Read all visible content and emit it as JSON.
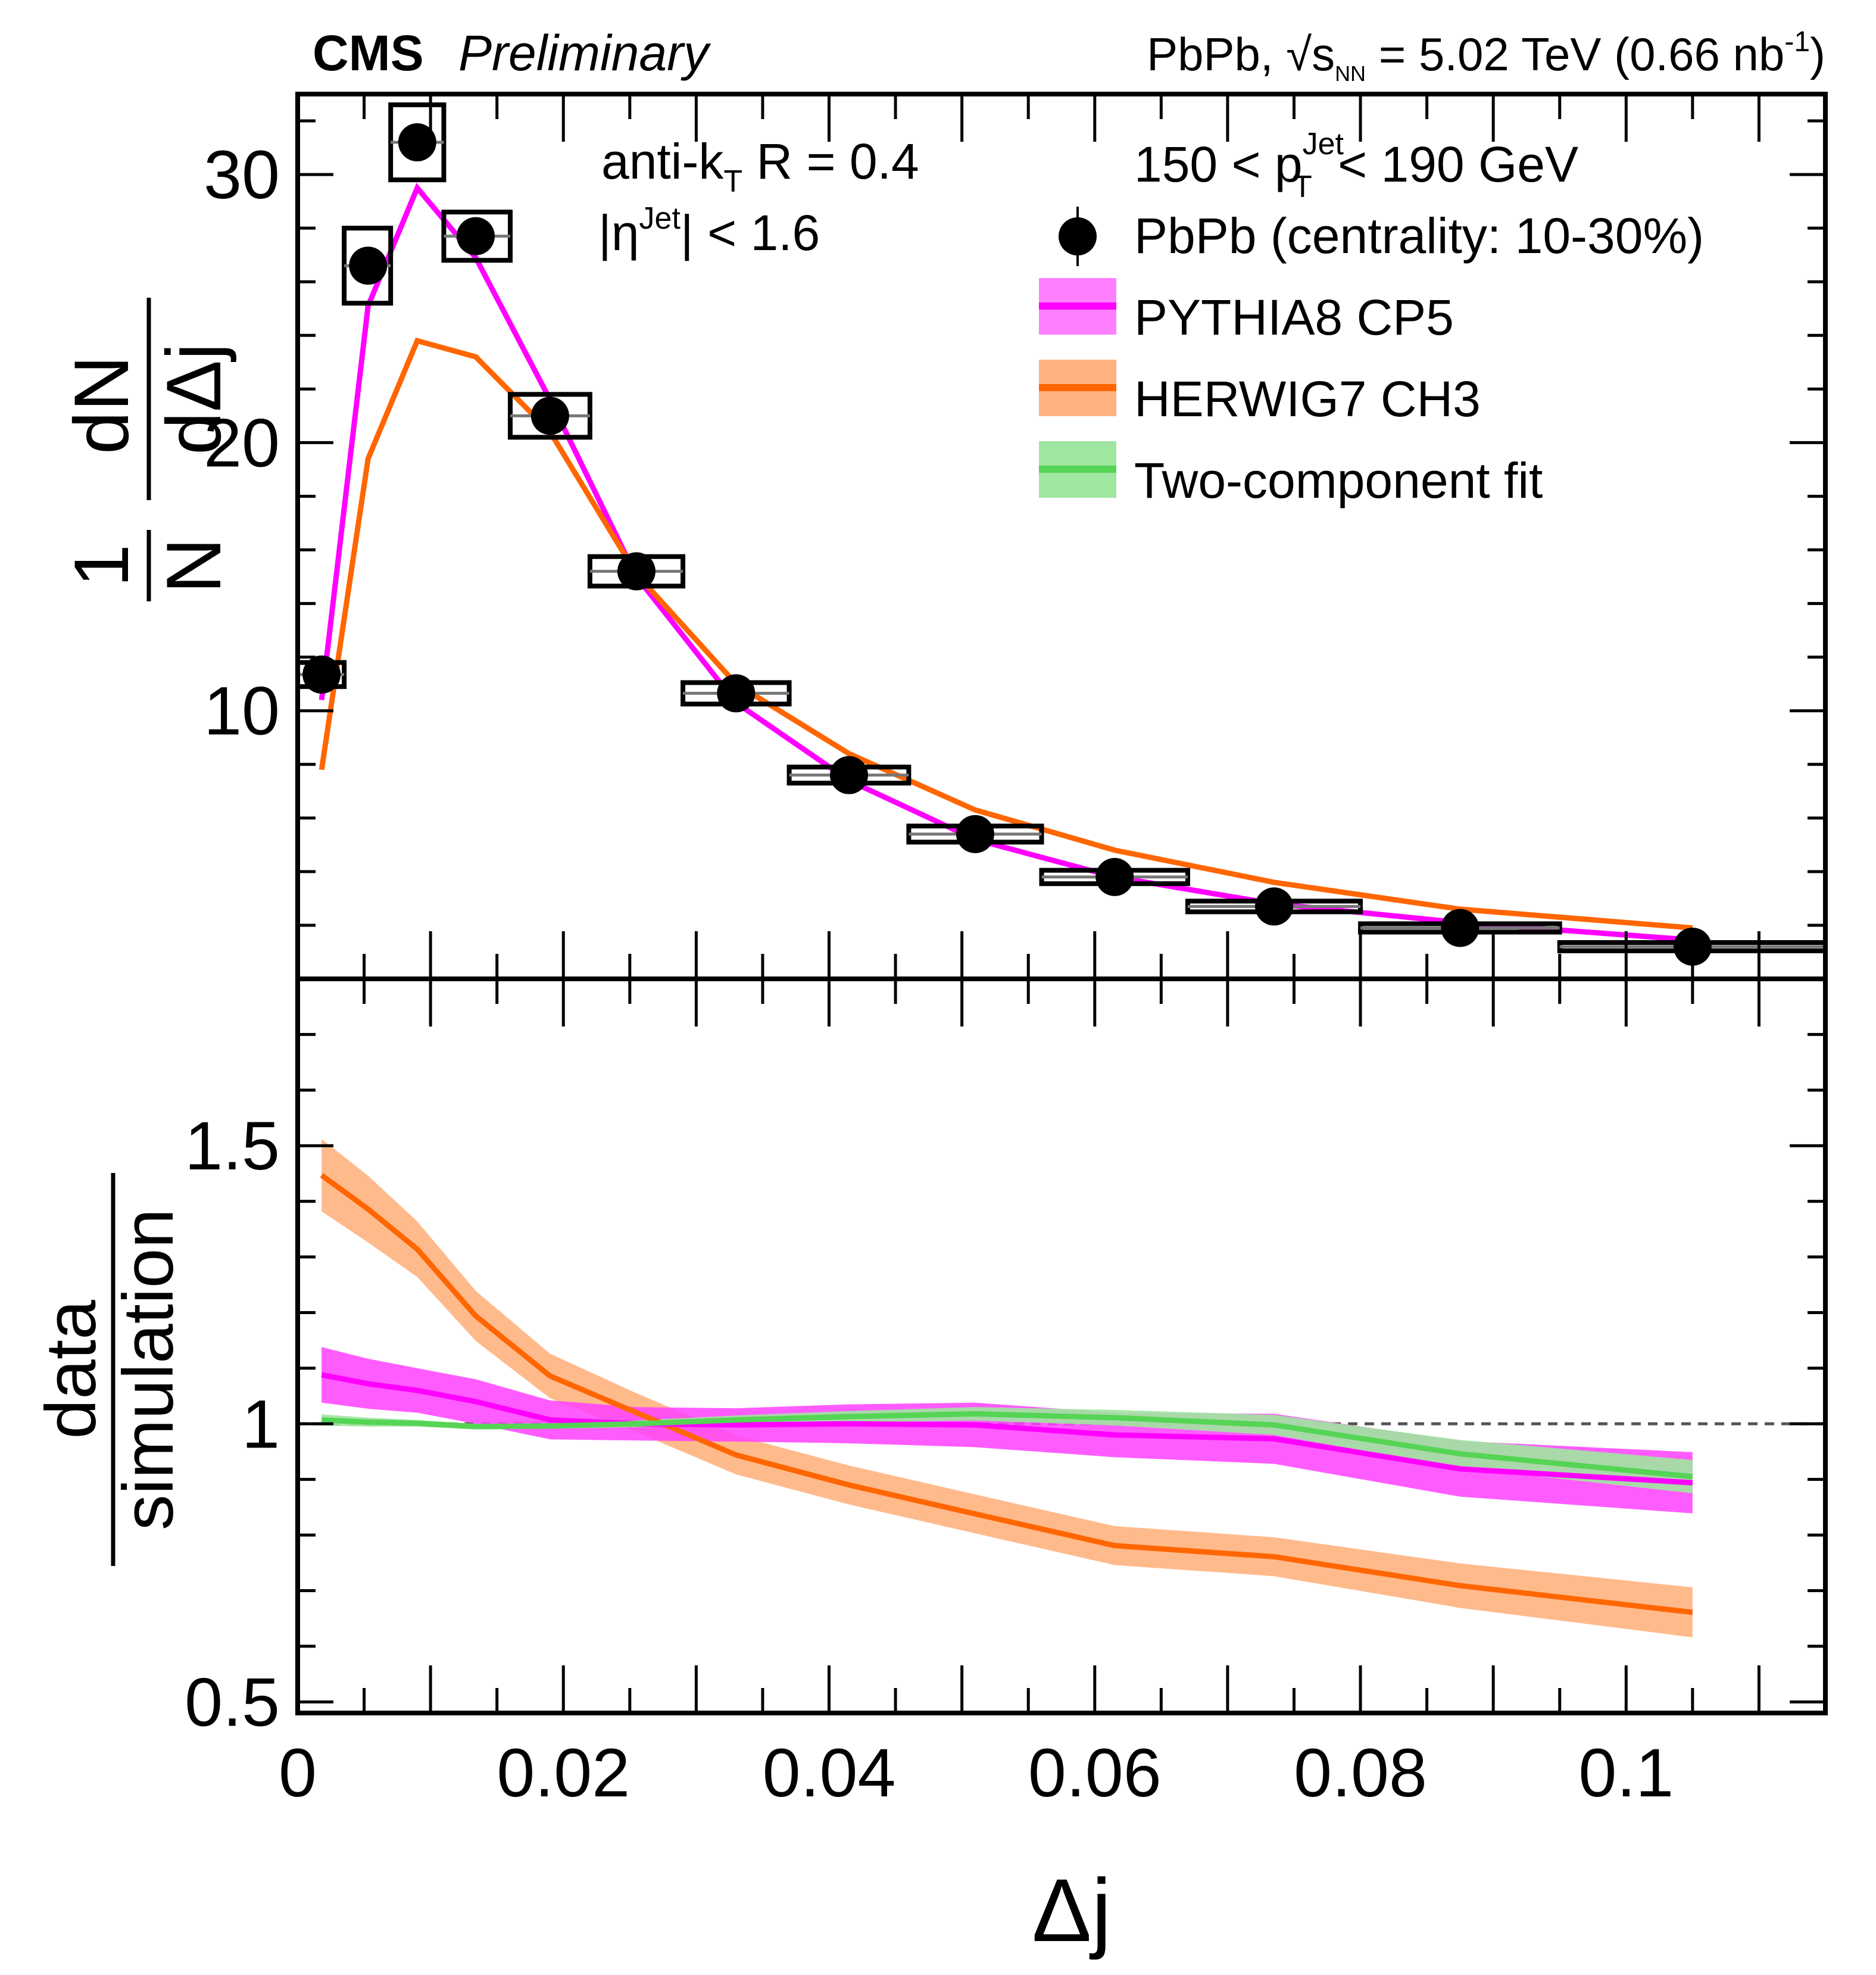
{
  "chart_data": [
    {
      "type": "line",
      "panel": "main",
      "title_left_bold": "CMS",
      "title_left_italic": "Preliminary",
      "title_right": {
        "prefix": "PbPb, ",
        "sqrt": "s",
        "sub": "NN",
        "suffix": " = 5.02 TeV (0.66 nb",
        "sup": "-1",
        "close": ")"
      },
      "annotations": {
        "algo": {
          "main": "anti-k",
          "sub": "T",
          "rest": " R = 0.4"
        },
        "eta": {
          "pre": "|η",
          "sup": "Jet",
          "rest": "| < 1.6"
        },
        "pt": {
          "pre": "150 < p",
          "sup": "Jet",
          "sub": "T",
          "rest": " < 190 GeV"
        }
      },
      "ylabel": {
        "num": "1",
        "den": "N",
        "num2": "dN",
        "den2": "dΔj"
      },
      "xlim": [
        0,
        0.115
      ],
      "ylim": [
        0,
        33
      ],
      "yticks": [
        10,
        20,
        30
      ],
      "legend_position": "top-right",
      "legend": [
        {
          "label": "PbPb (centrality: 10-30%)",
          "kind": "marker"
        },
        {
          "label": "PYTHIA8 CP5",
          "kind": "band",
          "line": "#ff00ff",
          "fill": "#ff80ff"
        },
        {
          "label": "HERWIG7 CH3",
          "kind": "band",
          "line": "#ff6600",
          "fill": "#ffb380"
        },
        {
          "label": "Two-component fit",
          "kind": "band",
          "line": "#55d455",
          "fill": "#a0e6a0"
        }
      ],
      "x": [
        0.0018,
        0.0053,
        0.009,
        0.0134,
        0.019,
        0.0255,
        0.033,
        0.0415,
        0.051,
        0.0615,
        0.0735,
        0.0875,
        0.105
      ],
      "bin_edges": [
        0,
        0.0035,
        0.007,
        0.011,
        0.016,
        0.022,
        0.029,
        0.037,
        0.046,
        0.056,
        0.067,
        0.08,
        0.095,
        0.115
      ],
      "series": [
        {
          "name": "PbPb (centrality: 10-30%)",
          "color": "#000000",
          "values": [
            11.35,
            26.6,
            31.2,
            27.7,
            21.0,
            15.2,
            10.65,
            7.6,
            5.4,
            3.8,
            2.7,
            1.9,
            1.2
          ],
          "syst": [
            0.45,
            1.4,
            1.4,
            0.9,
            0.8,
            0.55,
            0.4,
            0.3,
            0.3,
            0.25,
            0.2,
            0.1,
            0.1
          ]
        },
        {
          "name": "PYTHIA8 CP5",
          "color": "#ff00ff",
          "values": [
            10.4,
            25.1,
            29.5,
            26.9,
            21.6,
            15.0,
            10.3,
            7.4,
            5.2,
            3.8,
            2.8,
            2.1,
            1.45
          ]
        },
        {
          "name": "HERWIG7 CH3",
          "color": "#ff6600",
          "values": [
            7.8,
            19.4,
            23.8,
            23.2,
            20.4,
            15.1,
            11.0,
            8.4,
            6.3,
            4.8,
            3.6,
            2.6,
            1.9
          ]
        }
      ]
    },
    {
      "type": "area",
      "panel": "ratio",
      "ylabel": {
        "num": "data",
        "den": "simulation"
      },
      "xlabel": "Δj",
      "xlim": [
        0,
        0.115
      ],
      "ylim": [
        0.48,
        1.8
      ],
      "yticks": [
        {
          "v": 0.5,
          "label": "0.5"
        },
        {
          "v": 1,
          "label": "1"
        },
        {
          "v": 1.5,
          "label": "1.5"
        }
      ],
      "xticks": [
        {
          "v": 0,
          "label": "0"
        },
        {
          "v": 0.02,
          "label": "0.02"
        },
        {
          "v": 0.04,
          "label": "0.04"
        },
        {
          "v": 0.06,
          "label": "0.06"
        },
        {
          "v": 0.08,
          "label": "0.08"
        },
        {
          "v": 0.1,
          "label": "0.1"
        }
      ],
      "reference_line": 1,
      "x": [
        0.0018,
        0.0053,
        0.009,
        0.0134,
        0.019,
        0.0255,
        0.033,
        0.0415,
        0.051,
        0.0615,
        0.0735,
        0.0875,
        0.105
      ],
      "series": [
        {
          "name": "HERWIG7 CH3",
          "line": "#ff6600",
          "fill": "#ffb380",
          "values": [
            1.447,
            1.386,
            1.314,
            1.194,
            1.086,
            1.02,
            0.944,
            0.89,
            0.838,
            0.781,
            0.761,
            0.709,
            0.661
          ],
          "err": [
            0.065,
            0.06,
            0.05,
            0.045,
            0.04,
            0.035,
            0.035,
            0.035,
            0.035,
            0.035,
            0.035,
            0.04,
            0.045
          ]
        },
        {
          "name": "PYTHIA8 CP5",
          "line": "#ff00ff",
          "fill": "#ff40ff",
          "values": [
            1.088,
            1.072,
            1.06,
            1.04,
            1.007,
            1.0,
            0.998,
            1.0,
            0.998,
            0.98,
            0.973,
            0.919,
            0.894
          ],
          "err": [
            0.05,
            0.045,
            0.04,
            0.04,
            0.035,
            0.03,
            0.03,
            0.035,
            0.04,
            0.04,
            0.045,
            0.05,
            0.055
          ]
        },
        {
          "name": "Two-component fit",
          "line": "#55d455",
          "fill": "#a0e6a0",
          "values": [
            1.007,
            1.003,
            1.001,
            0.995,
            0.996,
            1.0,
            1.007,
            1.013,
            1.018,
            1.011,
            0.998,
            0.946,
            0.905
          ],
          "err": [
            0.01,
            0.008,
            0.006,
            0.005,
            0.005,
            0.006,
            0.008,
            0.01,
            0.012,
            0.014,
            0.018,
            0.025,
            0.03
          ]
        }
      ]
    }
  ]
}
